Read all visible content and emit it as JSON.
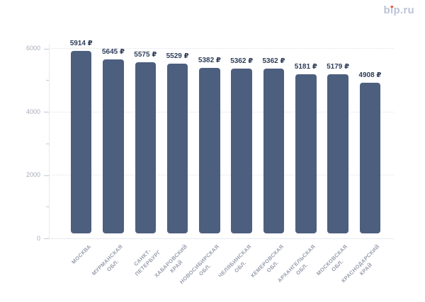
{
  "brand": {
    "b": "b",
    "i_base": "ı",
    "rest": "p.ru",
    "full_text": "bip.ru"
  },
  "colors": {
    "bar": "#4d5f7e",
    "value_label": "#2e3d5a",
    "y_axis_label": "#a6acba",
    "category_label": "#969dac",
    "gridline": "#dfe2ea",
    "axis_line": "#e7e9ee",
    "tick": "#c2c7d2",
    "brand_text": "#bcc3d6",
    "brand_dot": "#e95d3c",
    "background": "#ffffff"
  },
  "chart_data": {
    "type": "bar",
    "title": "",
    "xlabel": "",
    "ylabel": "",
    "categories": [
      "МОСКВА",
      "МУРМАНСКАЯ ОБЛ.",
      "САНКТ-ПЕТЕРБУРГ",
      "ХАБАРОВСКИЙ КРАЙ",
      "НОВОСИБИРСКАЯ ОБЛ.",
      "ЧЕЛЯБИНСКАЯ ОБЛ.",
      "КЕМЕРОВСКАЯ ОБЛ.",
      "АРХАНГЕЛЬСКАЯ ОБЛ.",
      "МОСКОВСКАЯ ОБЛ.",
      "КРАСНОДАРСКИЙ КРАЙ"
    ],
    "category_lines": [
      [
        "МОСКВА"
      ],
      [
        "МУРМАНСКАЯ",
        "ОБЛ."
      ],
      [
        "САНКТ-",
        "ПЕТЕРБУРГ"
      ],
      [
        "ХАБАРОВСКИЙ",
        "КРАЙ"
      ],
      [
        "НОВОСИБИРСКАЯ",
        "ОБЛ."
      ],
      [
        "ЧЕЛЯБИНСКАЯ",
        "ОБЛ."
      ],
      [
        "КЕМЕРОВСКАЯ",
        "ОБЛ."
      ],
      [
        "АРХАНГЕЛЬСКАЯ",
        "ОБЛ."
      ],
      [
        "МОСКОВСКАЯ",
        "ОБЛ."
      ],
      [
        "КРАСНОДАРСКИЙ",
        "КРАЙ"
      ]
    ],
    "values": [
      5914,
      5645,
      5575,
      5529,
      5382,
      5362,
      5362,
      5181,
      5179,
      4908
    ],
    "value_labels": [
      "5914 ₽",
      "5645 ₽",
      "5575 ₽",
      "5529 ₽",
      "5382 ₽",
      "5362 ₽",
      "5362 ₽",
      "5181 ₽",
      "5179 ₽",
      "4908 ₽"
    ],
    "currency_symbol": "₽",
    "ylim": [
      0,
      6000
    ],
    "y_major_ticks": [
      0,
      2000,
      4000,
      6000
    ],
    "y_minor_ticks": [
      1000,
      3000,
      5000
    ],
    "grid": "horizontal-dotted",
    "legend_position": "none",
    "bar_corner_radius": 4
  }
}
